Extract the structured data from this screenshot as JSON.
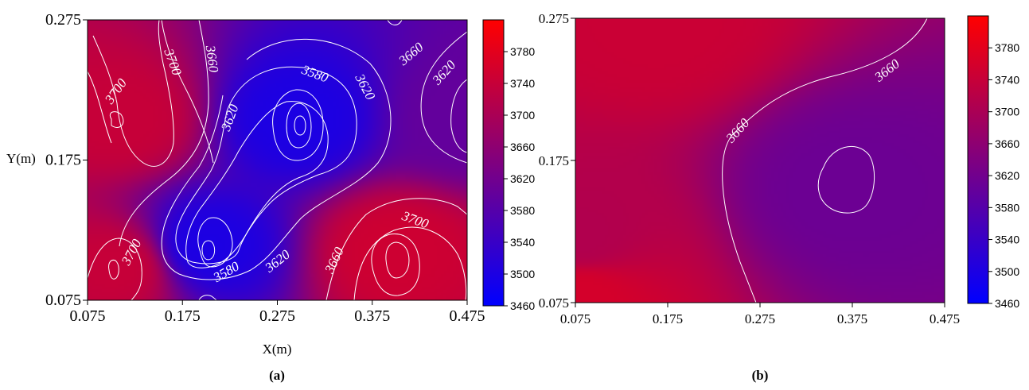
{
  "chart_data": [
    {
      "type": "heatmap",
      "panel_label": "(a)",
      "xlabel": "X(m)",
      "ylabel": "Y(m)",
      "x_ticks": [
        "0.075",
        "0.175",
        "0.275",
        "0.375",
        "0.475"
      ],
      "y_ticks": [
        "0.075",
        "0.175",
        "0.275"
      ],
      "xlim": [
        0.075,
        0.475
      ],
      "ylim": [
        0.075,
        0.275
      ],
      "colorbar_ticks": [
        "3460",
        "3500",
        "3540",
        "3580",
        "3620",
        "3660",
        "3700",
        "3740",
        "3780"
      ],
      "colorbar_range": [
        3460,
        3820
      ],
      "color_low": "#0000ff",
      "color_high": "#ff0000",
      "contour_labels": [
        "3700",
        "3700",
        "3660",
        "3620",
        "3580",
        "3620",
        "3660",
        "3620",
        "3700",
        "3580",
        "3620",
        "3660",
        "3700"
      ],
      "extrema": [
        {
          "x": 0.11,
          "y": 0.205,
          "value": 3740
        },
        {
          "x": 0.295,
          "y": 0.204,
          "value": 3500
        },
        {
          "x": 0.2,
          "y": 0.113,
          "value": 3500
        },
        {
          "x": 0.4,
          "y": 0.11,
          "value": 3750
        },
        {
          "x": 0.105,
          "y": 0.098,
          "value": 3740
        },
        {
          "x": 0.475,
          "y": 0.205,
          "value": 3600
        }
      ]
    },
    {
      "type": "heatmap",
      "panel_label": "(b)",
      "xlabel": "",
      "ylabel": "",
      "x_ticks": [
        "0.075",
        "0.175",
        "0.275",
        "0.375",
        "0.475"
      ],
      "y_ticks": [
        "0.075",
        "0.175",
        "0.275"
      ],
      "xlim": [
        0.075,
        0.475
      ],
      "ylim": [
        0.075,
        0.275
      ],
      "colorbar_ticks": [
        "3460",
        "3500",
        "3540",
        "3580",
        "3620",
        "3660",
        "3700",
        "3740",
        "3780"
      ],
      "colorbar_range": [
        3460,
        3820
      ],
      "color_low": "#0000ff",
      "color_high": "#ff0000",
      "contour_labels": [
        "3660",
        "3660"
      ],
      "extrema": [
        {
          "x": 0.17,
          "y": 0.272,
          "value": 3745
        },
        {
          "x": 0.365,
          "y": 0.155,
          "value": 3612
        },
        {
          "x": 0.08,
          "y": 0.078,
          "value": 3760
        },
        {
          "x": 0.08,
          "y": 0.12,
          "value": 3710
        }
      ]
    }
  ]
}
